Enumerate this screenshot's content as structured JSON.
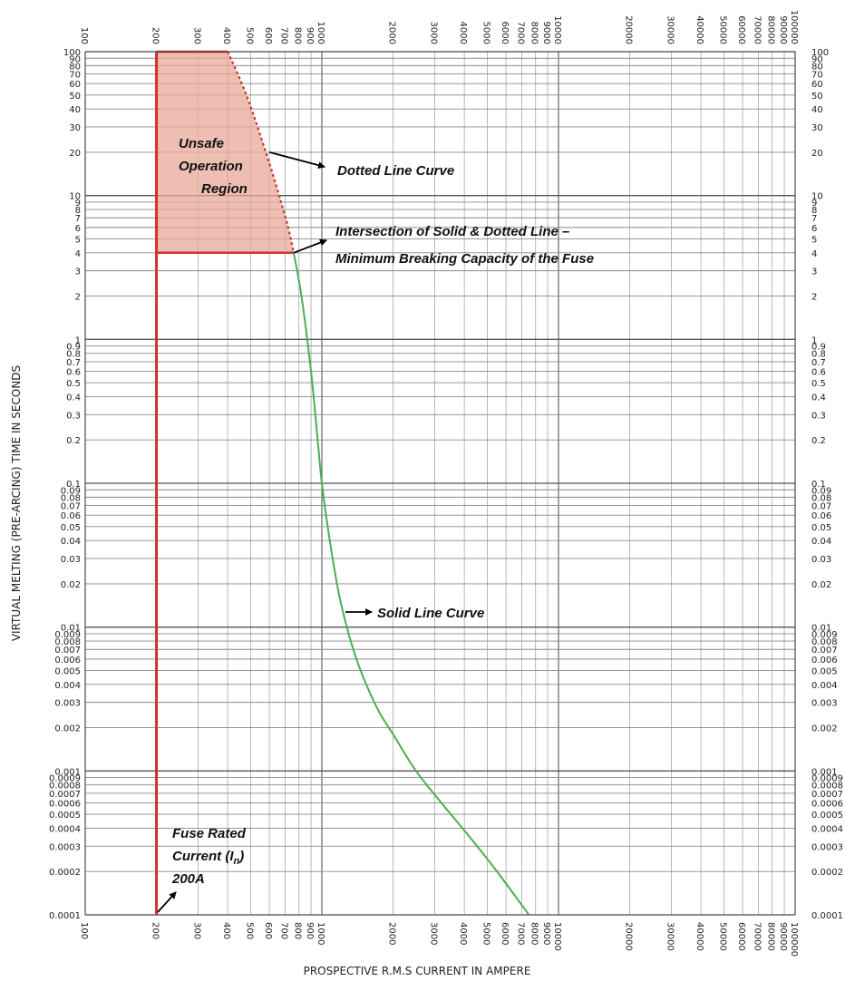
{
  "chart_data": {
    "type": "line",
    "xscale": "log",
    "yscale": "log",
    "xlim": [
      100,
      100000
    ],
    "ylim": [
      0.0001,
      100
    ],
    "grid": true,
    "xlabel": "PROSPECTIVE R.M.S CURRENT IN AMPERE",
    "ylabel": "VIRTUAL MELTING (PRE-ARCING) TIME IN SECONDS",
    "x_ticks": [
      100,
      200,
      300,
      400,
      500,
      600,
      700,
      800,
      900,
      1000,
      2000,
      3000,
      4000,
      5000,
      6000,
      7000,
      8000,
      9000,
      10000,
      20000,
      30000,
      40000,
      50000,
      60000,
      70000,
      80000,
      90000,
      100000
    ],
    "y_ticks": [
      0.0001,
      0.0002,
      0.0003,
      0.0004,
      0.0005,
      0.0006,
      0.0007,
      0.0008,
      0.0009,
      0.001,
      0.002,
      0.003,
      0.004,
      0.005,
      0.006,
      0.007,
      0.008,
      0.009,
      0.01,
      0.02,
      0.03,
      0.04,
      0.05,
      0.06,
      0.07,
      0.08,
      0.09,
      0.1,
      0.2,
      0.3,
      0.4,
      0.5,
      0.6,
      0.7,
      0.8,
      0.9,
      1,
      2,
      3,
      4,
      5,
      6,
      7,
      8,
      9,
      10,
      20,
      30,
      40,
      50,
      60,
      70,
      80,
      90,
      100
    ],
    "series": [
      {
        "style": "solid",
        "color": "#4caf50",
        "points": [
          [
            760,
            4
          ],
          [
            820,
            2
          ],
          [
            900,
            0.6
          ],
          [
            960,
            0.2
          ],
          [
            1000,
            0.1
          ],
          [
            1080,
            0.04
          ],
          [
            1200,
            0.015
          ],
          [
            1400,
            0.006
          ],
          [
            1700,
            0.0028
          ],
          [
            2000,
            0.0018
          ],
          [
            2500,
            0.001
          ],
          [
            3200,
            0.0006
          ],
          [
            4200,
            0.00035
          ],
          [
            5500,
            0.0002
          ],
          [
            7500,
            0.0001
          ]
        ]
      },
      {
        "style": "dotted",
        "color": "#c0392b",
        "points": [
          [
            400,
            100
          ],
          [
            480,
            50
          ],
          [
            580,
            20
          ],
          [
            660,
            10
          ],
          [
            720,
            6
          ],
          [
            760,
            4
          ]
        ]
      },
      {
        "style": "solid",
        "color": "#d32f2f",
        "points": [
          [
            200,
            0.0001
          ],
          [
            200,
            100
          ]
        ]
      }
    ],
    "region": {
      "color": "#e8a898",
      "border": "#d32f2f",
      "points": [
        [
          200,
          100
        ],
        [
          400,
          100
        ],
        [
          480,
          50
        ],
        [
          580,
          20
        ],
        [
          660,
          10
        ],
        [
          720,
          6
        ],
        [
          760,
          4
        ],
        [
          200,
          4
        ]
      ]
    },
    "annotations": {
      "unsafe_line1": "Unsafe",
      "unsafe_line2": "Operation",
      "unsafe_line3": "Region",
      "dotted": "Dotted Line Curve",
      "intersection_line1": "Intersection of Solid & Dotted Line –",
      "intersection_line2": "Minimum Breaking Capacity of the Fuse",
      "solid": "Solid Line Curve",
      "rated_line1": "Fuse Rated",
      "rated_line2": "Current (I",
      "rated_sub": "n",
      "rated_close": ")",
      "rated_line3": "200A"
    }
  }
}
